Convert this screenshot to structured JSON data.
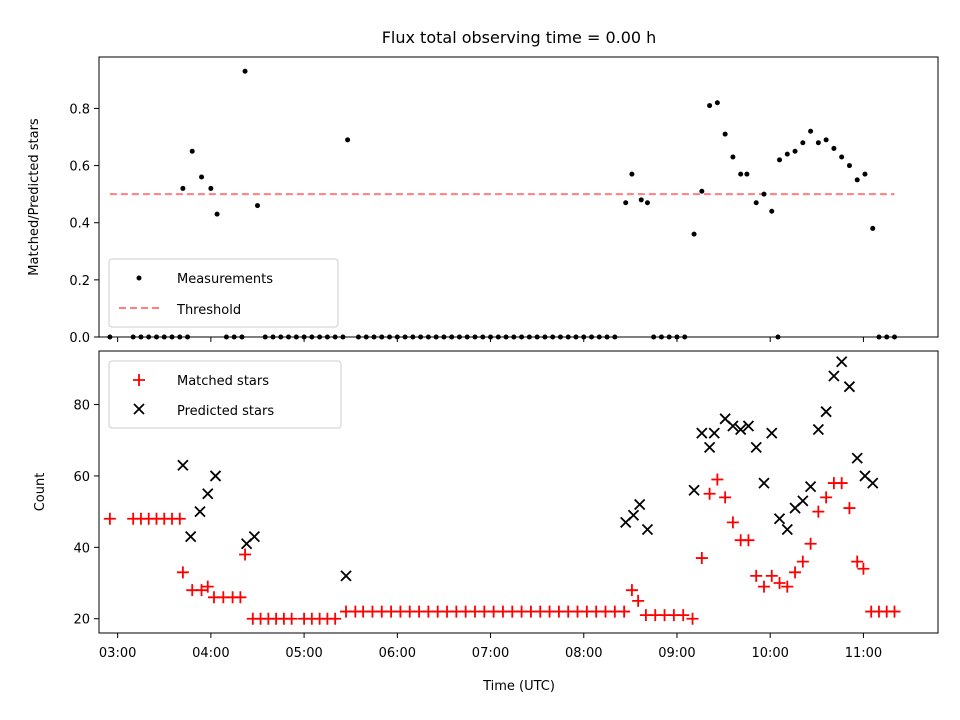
{
  "title": "Flux total observing time = 0.00 h",
  "colors": {
    "threshold": "#ff7f7f",
    "matched": "#ff0000",
    "predicted": "#000000",
    "measurements": "#000000"
  },
  "chart_data": [
    {
      "type": "scatter",
      "title": "Flux total observing time = 0.00 h",
      "xlabel": "",
      "ylabel": "Matched/Predicted stars",
      "xlim": [
        "02:48",
        "11:48"
      ],
      "ylim": [
        0,
        0.98
      ],
      "yticks": [
        "0.0",
        "0.2",
        "0.4",
        "0.6",
        "0.8"
      ],
      "ytick_values": [
        0,
        0.2,
        0.4,
        0.6,
        0.8
      ],
      "legend_position": "lower left",
      "series": [
        {
          "name": "Measurements",
          "kind": "points",
          "points": [
            [
              "02:55",
              0
            ],
            [
              "03:10",
              0
            ],
            [
              "03:15",
              0
            ],
            [
              "03:20",
              0
            ],
            [
              "03:25",
              0
            ],
            [
              "03:30",
              0
            ],
            [
              "03:35",
              0
            ],
            [
              "03:40",
              0
            ],
            [
              "03:45",
              0
            ],
            [
              "03:42",
              0.52
            ],
            [
              "03:48",
              0.65
            ],
            [
              "03:54",
              0.56
            ],
            [
              "04:00",
              0.52
            ],
            [
              "04:04",
              0.43
            ],
            [
              "04:10",
              0
            ],
            [
              "04:15",
              0
            ],
            [
              "04:20",
              0
            ],
            [
              "04:22",
              0.93
            ],
            [
              "04:30",
              0.46
            ],
            [
              "04:35",
              0
            ],
            [
              "04:40",
              0
            ],
            [
              "04:45",
              0
            ],
            [
              "04:50",
              0
            ],
            [
              "04:55",
              0
            ],
            [
              "05:00",
              0
            ],
            [
              "05:05",
              0
            ],
            [
              "05:10",
              0
            ],
            [
              "05:15",
              0
            ],
            [
              "05:20",
              0
            ],
            [
              "05:25",
              0
            ],
            [
              "05:28",
              0.69
            ],
            [
              "05:35",
              0
            ],
            [
              "05:40",
              0
            ],
            [
              "05:45",
              0
            ],
            [
              "05:50",
              0
            ],
            [
              "05:55",
              0
            ],
            [
              "06:00",
              0
            ],
            [
              "06:05",
              0
            ],
            [
              "06:10",
              0
            ],
            [
              "06:15",
              0
            ],
            [
              "06:20",
              0
            ],
            [
              "06:25",
              0
            ],
            [
              "06:30",
              0
            ],
            [
              "06:35",
              0
            ],
            [
              "06:40",
              0
            ],
            [
              "06:45",
              0
            ],
            [
              "06:50",
              0
            ],
            [
              "06:55",
              0
            ],
            [
              "07:00",
              0
            ],
            [
              "07:05",
              0
            ],
            [
              "07:10",
              0
            ],
            [
              "07:15",
              0
            ],
            [
              "07:20",
              0
            ],
            [
              "07:25",
              0
            ],
            [
              "07:30",
              0
            ],
            [
              "07:35",
              0
            ],
            [
              "07:40",
              0
            ],
            [
              "07:45",
              0
            ],
            [
              "07:50",
              0
            ],
            [
              "07:55",
              0
            ],
            [
              "08:00",
              0
            ],
            [
              "08:05",
              0
            ],
            [
              "08:10",
              0
            ],
            [
              "08:15",
              0
            ],
            [
              "08:20",
              0
            ],
            [
              "08:27",
              0.47
            ],
            [
              "08:31",
              0.57
            ],
            [
              "08:37",
              0.48
            ],
            [
              "08:41",
              0.47
            ],
            [
              "08:45",
              0
            ],
            [
              "08:50",
              0
            ],
            [
              "08:55",
              0
            ],
            [
              "09:00",
              0
            ],
            [
              "09:05",
              0
            ],
            [
              "09:11",
              0.36
            ],
            [
              "09:16",
              0.51
            ],
            [
              "09:21",
              0.81
            ],
            [
              "09:26",
              0.82
            ],
            [
              "09:31",
              0.71
            ],
            [
              "09:36",
              0.63
            ],
            [
              "09:41",
              0.57
            ],
            [
              "09:45",
              0.57
            ],
            [
              "09:51",
              0.47
            ],
            [
              "09:56",
              0.5
            ],
            [
              "10:01",
              0.44
            ],
            [
              "10:05",
              0
            ],
            [
              "10:06",
              0.62
            ],
            [
              "10:11",
              0.64
            ],
            [
              "10:16",
              0.65
            ],
            [
              "10:21",
              0.68
            ],
            [
              "10:26",
              0.72
            ],
            [
              "10:31",
              0.68
            ],
            [
              "10:36",
              0.69
            ],
            [
              "10:41",
              0.66
            ],
            [
              "10:46",
              0.63
            ],
            [
              "10:51",
              0.6
            ],
            [
              "10:56",
              0.55
            ],
            [
              "11:01",
              0.57
            ],
            [
              "11:06",
              0.38
            ],
            [
              "11:10",
              0
            ],
            [
              "11:15",
              0
            ],
            [
              "11:20",
              0
            ]
          ]
        },
        {
          "name": "Threshold",
          "kind": "dashed-line",
          "points": [
            [
              "02:55",
              0.5
            ],
            [
              "11:20",
              0.5
            ]
          ]
        }
      ]
    },
    {
      "type": "scatter",
      "xlabel": "Time (UTC)",
      "ylabel": "Count",
      "xlim": [
        "02:48",
        "11:48"
      ],
      "ylim": [
        16,
        95
      ],
      "xticks": [
        "03:00",
        "04:00",
        "05:00",
        "06:00",
        "07:00",
        "08:00",
        "09:00",
        "10:00",
        "11:00"
      ],
      "yticks": [
        "20",
        "40",
        "60",
        "80"
      ],
      "ytick_values": [
        20,
        40,
        60,
        80
      ],
      "legend_position": "upper left",
      "series": [
        {
          "name": "Matched stars",
          "kind": "plus",
          "points": [
            [
              "02:55",
              48
            ],
            [
              "03:10",
              48
            ],
            [
              "03:15",
              48
            ],
            [
              "03:20",
              48
            ],
            [
              "03:25",
              48
            ],
            [
              "03:30",
              48
            ],
            [
              "03:35",
              48
            ],
            [
              "03:40",
              48
            ],
            [
              "03:42",
              33
            ],
            [
              "03:48",
              28
            ],
            [
              "03:54",
              28
            ],
            [
              "03:58",
              29
            ],
            [
              "04:02",
              26
            ],
            [
              "04:08",
              26
            ],
            [
              "04:14",
              26
            ],
            [
              "04:19",
              26
            ],
            [
              "04:22",
              38
            ],
            [
              "04:27",
              20
            ],
            [
              "04:32",
              20
            ],
            [
              "04:37",
              20
            ],
            [
              "04:42",
              20
            ],
            [
              "04:47",
              20
            ],
            [
              "04:52",
              20
            ],
            [
              "05:00",
              20
            ],
            [
              "05:05",
              20
            ],
            [
              "05:10",
              20
            ],
            [
              "05:15",
              20
            ],
            [
              "05:20",
              20
            ],
            [
              "05:27",
              22
            ],
            [
              "05:33",
              22
            ],
            [
              "05:38",
              22
            ],
            [
              "05:44",
              22
            ],
            [
              "05:50",
              22
            ],
            [
              "05:56",
              22
            ],
            [
              "06:02",
              22
            ],
            [
              "06:08",
              22
            ],
            [
              "06:14",
              22
            ],
            [
              "06:20",
              22
            ],
            [
              "06:26",
              22
            ],
            [
              "06:32",
              22
            ],
            [
              "06:38",
              22
            ],
            [
              "06:44",
              22
            ],
            [
              "06:50",
              22
            ],
            [
              "06:56",
              22
            ],
            [
              "07:02",
              22
            ],
            [
              "07:08",
              22
            ],
            [
              "07:14",
              22
            ],
            [
              "07:20",
              22
            ],
            [
              "07:26",
              22
            ],
            [
              "07:32",
              22
            ],
            [
              "07:38",
              22
            ],
            [
              "07:44",
              22
            ],
            [
              "07:50",
              22
            ],
            [
              "07:56",
              22
            ],
            [
              "08:02",
              22
            ],
            [
              "08:08",
              22
            ],
            [
              "08:14",
              22
            ],
            [
              "08:20",
              22
            ],
            [
              "08:26",
              22
            ],
            [
              "08:31",
              28
            ],
            [
              "08:35",
              25
            ],
            [
              "08:40",
              21
            ],
            [
              "08:46",
              21
            ],
            [
              "08:52",
              21
            ],
            [
              "08:58",
              21
            ],
            [
              "09:04",
              21
            ],
            [
              "09:10",
              20
            ],
            [
              "09:16",
              37
            ],
            [
              "09:21",
              55
            ],
            [
              "09:26",
              59
            ],
            [
              "09:31",
              54
            ],
            [
              "09:36",
              47
            ],
            [
              "09:41",
              42
            ],
            [
              "09:46",
              42
            ],
            [
              "09:51",
              32
            ],
            [
              "09:56",
              29
            ],
            [
              "10:01",
              32
            ],
            [
              "10:06",
              30
            ],
            [
              "10:11",
              29
            ],
            [
              "10:16",
              33
            ],
            [
              "10:21",
              36
            ],
            [
              "10:26",
              41
            ],
            [
              "10:31",
              50
            ],
            [
              "10:36",
              54
            ],
            [
              "10:41",
              58
            ],
            [
              "10:46",
              58
            ],
            [
              "10:51",
              51
            ],
            [
              "10:56",
              36
            ],
            [
              "11:00",
              34
            ],
            [
              "11:05",
              22
            ],
            [
              "11:10",
              22
            ],
            [
              "11:15",
              22
            ],
            [
              "11:20",
              22
            ]
          ]
        },
        {
          "name": "Predicted stars",
          "kind": "x",
          "points": [
            [
              "03:42",
              63
            ],
            [
              "03:47",
              43
            ],
            [
              "03:53",
              50
            ],
            [
              "03:58",
              55
            ],
            [
              "04:03",
              60
            ],
            [
              "04:23",
              41
            ],
            [
              "04:28",
              43
            ],
            [
              "05:27",
              32
            ],
            [
              "08:27",
              47
            ],
            [
              "08:32",
              49
            ],
            [
              "08:36",
              52
            ],
            [
              "08:41",
              45
            ],
            [
              "09:11",
              56
            ],
            [
              "09:16",
              72
            ],
            [
              "09:21",
              68
            ],
            [
              "09:24",
              72
            ],
            [
              "09:31",
              76
            ],
            [
              "09:36",
              74
            ],
            [
              "09:41",
              73
            ],
            [
              "09:46",
              74
            ],
            [
              "09:51",
              68
            ],
            [
              "09:56",
              58
            ],
            [
              "10:01",
              72
            ],
            [
              "10:06",
              48
            ],
            [
              "10:11",
              45
            ],
            [
              "10:16",
              51
            ],
            [
              "10:21",
              53
            ],
            [
              "10:26",
              57
            ],
            [
              "10:31",
              73
            ],
            [
              "10:36",
              78
            ],
            [
              "10:41",
              88
            ],
            [
              "10:46",
              92
            ],
            [
              "10:51",
              85
            ],
            [
              "10:56",
              65
            ],
            [
              "11:01",
              60
            ],
            [
              "11:06",
              58
            ]
          ]
        }
      ]
    }
  ]
}
